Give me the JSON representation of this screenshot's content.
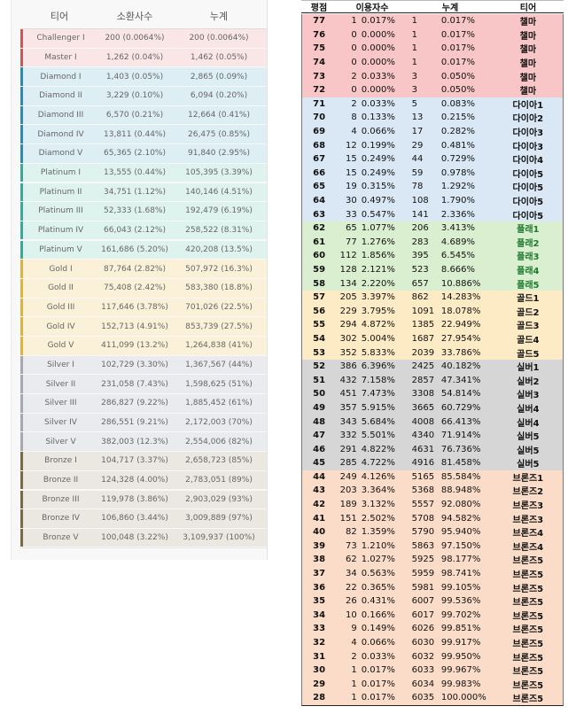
{
  "left": {
    "headers": {
      "tier": "티어",
      "summoners": "소환사수",
      "cumulative": "누계"
    },
    "rows": [
      {
        "tier": "Challenger I",
        "summoners": "200 (0.0064%)",
        "cumulative": "200 (0.0064%)",
        "color": "#fae6e6",
        "stripe": "#c65a5a"
      },
      {
        "tier": "Master I",
        "summoners": "1,262 (0.04%)",
        "cumulative": "1,462 (0.05%)",
        "color": "#fae6e6",
        "stripe": "#c65a5a"
      },
      {
        "tier": "Diamond I",
        "summoners": "1,403 (0.05%)",
        "cumulative": "2,865 (0.09%)",
        "color": "#ddeef5",
        "stripe": "#2f8ab0"
      },
      {
        "tier": "Diamond II",
        "summoners": "3,229 (0.10%)",
        "cumulative": "6,094 (0.20%)",
        "color": "#ddeef5",
        "stripe": "#2f8ab0"
      },
      {
        "tier": "Diamond III",
        "summoners": "6,570 (0.21%)",
        "cumulative": "12,664 (0.41%)",
        "color": "#ddeef5",
        "stripe": "#2f8ab0"
      },
      {
        "tier": "Diamond IV",
        "summoners": "13,811 (0.44%)",
        "cumulative": "26,475 (0.85%)",
        "color": "#ddeef5",
        "stripe": "#2f8ab0"
      },
      {
        "tier": "Diamond V",
        "summoners": "65,365 (2.10%)",
        "cumulative": "91,840 (2.95%)",
        "color": "#ddeef5",
        "stripe": "#2f8ab0"
      },
      {
        "tier": "Platinum I",
        "summoners": "13,555 (0.44%)",
        "cumulative": "105,395 (3.39%)",
        "color": "#dff3ee",
        "stripe": "#3aa99a"
      },
      {
        "tier": "Platinum II",
        "summoners": "34,751 (1.12%)",
        "cumulative": "140,146 (4.51%)",
        "color": "#dff3ee",
        "stripe": "#3aa99a"
      },
      {
        "tier": "Platinum III",
        "summoners": "52,333 (1.68%)",
        "cumulative": "192,479 (6.19%)",
        "color": "#dff3ee",
        "stripe": "#3aa99a"
      },
      {
        "tier": "Platinum IV",
        "summoners": "66,043 (2.12%)",
        "cumulative": "258,522 (8.31%)",
        "color": "#dff3ee",
        "stripe": "#3aa99a"
      },
      {
        "tier": "Platinum V",
        "summoners": "161,686 (5.20%)",
        "cumulative": "420,208 (13.5%)",
        "color": "#dff3ee",
        "stripe": "#3aa99a"
      },
      {
        "tier": "Gold I",
        "summoners": "87,764 (2.82%)",
        "cumulative": "507,972 (16.3%)",
        "color": "#fbf1d9",
        "stripe": "#e0b240"
      },
      {
        "tier": "Gold II",
        "summoners": "75,408 (2.42%)",
        "cumulative": "583,380 (18.8%)",
        "color": "#fbf1d9",
        "stripe": "#e0b240"
      },
      {
        "tier": "Gold III",
        "summoners": "117,646 (3.78%)",
        "cumulative": "701,026 (22.5%)",
        "color": "#fbf1d9",
        "stripe": "#e0b240"
      },
      {
        "tier": "Gold IV",
        "summoners": "152,713 (4.91%)",
        "cumulative": "853,739 (27.5%)",
        "color": "#fbf1d9",
        "stripe": "#e0b240"
      },
      {
        "tier": "Gold V",
        "summoners": "411,099 (13.2%)",
        "cumulative": "1,264,838 (41%)",
        "color": "#fbf1d9",
        "stripe": "#e0b240"
      },
      {
        "tier": "Silver I",
        "summoners": "102,729 (3.30%)",
        "cumulative": "1,367,567 (44%)",
        "color": "#eaebee",
        "stripe": "#a4a8b0"
      },
      {
        "tier": "Silver II",
        "summoners": "231,058 (7.43%)",
        "cumulative": "1,598,625 (51%)",
        "color": "#eaebee",
        "stripe": "#a4a8b0"
      },
      {
        "tier": "Silver III",
        "summoners": "286,827 (9.22%)",
        "cumulative": "1,885,452 (61%)",
        "color": "#eaebee",
        "stripe": "#a4a8b0"
      },
      {
        "tier": "Silver IV",
        "summoners": "286,551 (9.21%)",
        "cumulative": "2,172,003 (70%)",
        "color": "#eaebee",
        "stripe": "#a4a8b0"
      },
      {
        "tier": "Silver V",
        "summoners": "382,003 (12.3%)",
        "cumulative": "2,554,006 (82%)",
        "color": "#eaebee",
        "stripe": "#a4a8b0"
      },
      {
        "tier": "Bronze I",
        "summoners": "104,717 (3.37%)",
        "cumulative": "2,658,723 (85%)",
        "color": "#eae8e1",
        "stripe": "#7a6a44"
      },
      {
        "tier": "Bronze II",
        "summoners": "124,328 (4.00%)",
        "cumulative": "2,783,051 (89%)",
        "color": "#eae8e1",
        "stripe": "#7a6a44"
      },
      {
        "tier": "Bronze III",
        "summoners": "119,978 (3.86%)",
        "cumulative": "2,903,029 (93%)",
        "color": "#eae8e1",
        "stripe": "#7a6a44"
      },
      {
        "tier": "Bronze IV",
        "summoners": "106,860 (3.44%)",
        "cumulative": "3,009,889 (97%)",
        "color": "#eae8e1",
        "stripe": "#7a6a44"
      },
      {
        "tier": "Bronze V",
        "summoners": "100,048 (3.22%)",
        "cumulative": "3,109,937 (100%)",
        "color": "#eae8e1",
        "stripe": "#7a6a44"
      }
    ]
  },
  "right": {
    "headers": {
      "rating": "평점",
      "users": "이용자수",
      "cumulative": "누계",
      "tier": "티어"
    },
    "rows": [
      {
        "rating": "77",
        "users": "1",
        "users_pct": "0.017%",
        "cum": "1",
        "cum_pct": "0.017%",
        "tier": "챌마",
        "color": "#f8c6c6",
        "tier_color": "#111111"
      },
      {
        "rating": "76",
        "users": "0",
        "users_pct": "0.000%",
        "cum": "1",
        "cum_pct": "0.017%",
        "tier": "챌마",
        "color": "#f8c6c6",
        "tier_color": "#111111"
      },
      {
        "rating": "75",
        "users": "0",
        "users_pct": "0.000%",
        "cum": "1",
        "cum_pct": "0.017%",
        "tier": "챌마",
        "color": "#f8c6c6",
        "tier_color": "#111111"
      },
      {
        "rating": "74",
        "users": "0",
        "users_pct": "0.000%",
        "cum": "1",
        "cum_pct": "0.017%",
        "tier": "챌마",
        "color": "#f8c6c6",
        "tier_color": "#111111"
      },
      {
        "rating": "73",
        "users": "2",
        "users_pct": "0.033%",
        "cum": "3",
        "cum_pct": "0.050%",
        "tier": "챌마",
        "color": "#f8c6c6",
        "tier_color": "#111111"
      },
      {
        "rating": "72",
        "users": "0",
        "users_pct": "0.000%",
        "cum": "3",
        "cum_pct": "0.050%",
        "tier": "챌마",
        "color": "#f8c6c6",
        "tier_color": "#111111"
      },
      {
        "rating": "71",
        "users": "2",
        "users_pct": "0.033%",
        "cum": "5",
        "cum_pct": "0.083%",
        "tier": "다이아1",
        "color": "#dae8f5",
        "tier_color": "#111111"
      },
      {
        "rating": "70",
        "users": "8",
        "users_pct": "0.133%",
        "cum": "13",
        "cum_pct": "0.215%",
        "tier": "다이아2",
        "color": "#dae8f5",
        "tier_color": "#111111"
      },
      {
        "rating": "69",
        "users": "4",
        "users_pct": "0.066%",
        "cum": "17",
        "cum_pct": "0.282%",
        "tier": "다이아3",
        "color": "#dae8f5",
        "tier_color": "#111111"
      },
      {
        "rating": "68",
        "users": "12",
        "users_pct": "0.199%",
        "cum": "29",
        "cum_pct": "0.481%",
        "tier": "다이아3",
        "color": "#dae8f5",
        "tier_color": "#111111"
      },
      {
        "rating": "67",
        "users": "15",
        "users_pct": "0.249%",
        "cum": "44",
        "cum_pct": "0.729%",
        "tier": "다이아4",
        "color": "#dae8f5",
        "tier_color": "#111111"
      },
      {
        "rating": "66",
        "users": "15",
        "users_pct": "0.249%",
        "cum": "59",
        "cum_pct": "0.978%",
        "tier": "다이아5",
        "color": "#dae8f5",
        "tier_color": "#111111"
      },
      {
        "rating": "65",
        "users": "19",
        "users_pct": "0.315%",
        "cum": "78",
        "cum_pct": "1.292%",
        "tier": "다이아5",
        "color": "#dae8f5",
        "tier_color": "#111111"
      },
      {
        "rating": "64",
        "users": "30",
        "users_pct": "0.497%",
        "cum": "108",
        "cum_pct": "1.790%",
        "tier": "다이아5",
        "color": "#dae8f5",
        "tier_color": "#111111"
      },
      {
        "rating": "63",
        "users": "33",
        "users_pct": "0.547%",
        "cum": "141",
        "cum_pct": "2.336%",
        "tier": "다이아5",
        "color": "#dae8f5",
        "tier_color": "#111111"
      },
      {
        "rating": "62",
        "users": "65",
        "users_pct": "1.077%",
        "cum": "206",
        "cum_pct": "3.413%",
        "tier": "플래1",
        "color": "#d9efcf",
        "tier_color": "#1f7a2e"
      },
      {
        "rating": "61",
        "users": "77",
        "users_pct": "1.276%",
        "cum": "283",
        "cum_pct": "4.689%",
        "tier": "플래2",
        "color": "#d9efcf",
        "tier_color": "#1f7a2e"
      },
      {
        "rating": "60",
        "users": "112",
        "users_pct": "1.856%",
        "cum": "395",
        "cum_pct": "6.545%",
        "tier": "플래3",
        "color": "#d9efcf",
        "tier_color": "#1f7a2e"
      },
      {
        "rating": "59",
        "users": "128",
        "users_pct": "2.121%",
        "cum": "523",
        "cum_pct": "8.666%",
        "tier": "플래4",
        "color": "#d9efcf",
        "tier_color": "#1f7a2e"
      },
      {
        "rating": "58",
        "users": "134",
        "users_pct": "2.220%",
        "cum": "657",
        "cum_pct": "10.886%",
        "tier": "플래5",
        "color": "#d9efcf",
        "tier_color": "#1f7a2e"
      },
      {
        "rating": "57",
        "users": "205",
        "users_pct": "3.397%",
        "cum": "862",
        "cum_pct": "14.283%",
        "tier": "골드1",
        "color": "#fdebc6",
        "tier_color": "#111111"
      },
      {
        "rating": "56",
        "users": "229",
        "users_pct": "3.795%",
        "cum": "1091",
        "cum_pct": "18.078%",
        "tier": "골드2",
        "color": "#fdebc6",
        "tier_color": "#111111"
      },
      {
        "rating": "55",
        "users": "294",
        "users_pct": "4.872%",
        "cum": "1385",
        "cum_pct": "22.949%",
        "tier": "골드3",
        "color": "#fdebc6",
        "tier_color": "#111111"
      },
      {
        "rating": "54",
        "users": "302",
        "users_pct": "5.004%",
        "cum": "1687",
        "cum_pct": "27.954%",
        "tier": "골드4",
        "color": "#fdebc6",
        "tier_color": "#111111"
      },
      {
        "rating": "53",
        "users": "352",
        "users_pct": "5.833%",
        "cum": "2039",
        "cum_pct": "33.786%",
        "tier": "골드5",
        "color": "#fdebc6",
        "tier_color": "#111111"
      },
      {
        "rating": "52",
        "users": "386",
        "users_pct": "6.396%",
        "cum": "2425",
        "cum_pct": "40.182%",
        "tier": "실버1",
        "color": "#d6d6d6",
        "tier_color": "#111111"
      },
      {
        "rating": "51",
        "users": "432",
        "users_pct": "7.158%",
        "cum": "2857",
        "cum_pct": "47.341%",
        "tier": "실버2",
        "color": "#d6d6d6",
        "tier_color": "#111111"
      },
      {
        "rating": "50",
        "users": "451",
        "users_pct": "7.473%",
        "cum": "3308",
        "cum_pct": "54.814%",
        "tier": "실버3",
        "color": "#d6d6d6",
        "tier_color": "#111111"
      },
      {
        "rating": "49",
        "users": "357",
        "users_pct": "5.915%",
        "cum": "3665",
        "cum_pct": "60.729%",
        "tier": "실버4",
        "color": "#d6d6d6",
        "tier_color": "#111111"
      },
      {
        "rating": "48",
        "users": "343",
        "users_pct": "5.684%",
        "cum": "4008",
        "cum_pct": "66.413%",
        "tier": "실버4",
        "color": "#d6d6d6",
        "tier_color": "#111111"
      },
      {
        "rating": "47",
        "users": "332",
        "users_pct": "5.501%",
        "cum": "4340",
        "cum_pct": "71.914%",
        "tier": "실버5",
        "color": "#d6d6d6",
        "tier_color": "#111111"
      },
      {
        "rating": "46",
        "users": "291",
        "users_pct": "4.822%",
        "cum": "4631",
        "cum_pct": "76.736%",
        "tier": "실버5",
        "color": "#d6d6d6",
        "tier_color": "#111111"
      },
      {
        "rating": "45",
        "users": "285",
        "users_pct": "4.722%",
        "cum": "4916",
        "cum_pct": "81.458%",
        "tier": "실버5",
        "color": "#d6d6d6",
        "tier_color": "#111111"
      },
      {
        "rating": "44",
        "users": "249",
        "users_pct": "4.126%",
        "cum": "5165",
        "cum_pct": "85.584%",
        "tier": "브론즈1",
        "color": "#fbdcc9",
        "tier_color": "#111111"
      },
      {
        "rating": "43",
        "users": "203",
        "users_pct": "3.364%",
        "cum": "5368",
        "cum_pct": "88.948%",
        "tier": "브론즈2",
        "color": "#fbdcc9",
        "tier_color": "#111111"
      },
      {
        "rating": "42",
        "users": "189",
        "users_pct": "3.132%",
        "cum": "5557",
        "cum_pct": "92.080%",
        "tier": "브론즈3",
        "color": "#fbdcc9",
        "tier_color": "#111111"
      },
      {
        "rating": "41",
        "users": "151",
        "users_pct": "2.502%",
        "cum": "5708",
        "cum_pct": "94.582%",
        "tier": "브론즈3",
        "color": "#fbdcc9",
        "tier_color": "#111111"
      },
      {
        "rating": "40",
        "users": "82",
        "users_pct": "1.359%",
        "cum": "5790",
        "cum_pct": "95.940%",
        "tier": "브론즈4",
        "color": "#fbdcc9",
        "tier_color": "#111111"
      },
      {
        "rating": "39",
        "users": "73",
        "users_pct": "1.210%",
        "cum": "5863",
        "cum_pct": "97.150%",
        "tier": "브론즈4",
        "color": "#fbdcc9",
        "tier_color": "#111111"
      },
      {
        "rating": "38",
        "users": "62",
        "users_pct": "1.027%",
        "cum": "5925",
        "cum_pct": "98.177%",
        "tier": "브론즈5",
        "color": "#fbdcc9",
        "tier_color": "#111111"
      },
      {
        "rating": "37",
        "users": "34",
        "users_pct": "0.563%",
        "cum": "5959",
        "cum_pct": "98.741%",
        "tier": "브론즈5",
        "color": "#fbdcc9",
        "tier_color": "#111111"
      },
      {
        "rating": "36",
        "users": "22",
        "users_pct": "0.365%",
        "cum": "5981",
        "cum_pct": "99.105%",
        "tier": "브론즈5",
        "color": "#fbdcc9",
        "tier_color": "#111111"
      },
      {
        "rating": "35",
        "users": "26",
        "users_pct": "0.431%",
        "cum": "6007",
        "cum_pct": "99.536%",
        "tier": "브론즈5",
        "color": "#fbdcc9",
        "tier_color": "#111111"
      },
      {
        "rating": "34",
        "users": "10",
        "users_pct": "0.166%",
        "cum": "6017",
        "cum_pct": "99.702%",
        "tier": "브론즈5",
        "color": "#fbdcc9",
        "tier_color": "#111111"
      },
      {
        "rating": "33",
        "users": "9",
        "users_pct": "0.149%",
        "cum": "6026",
        "cum_pct": "99.851%",
        "tier": "브론즈5",
        "color": "#fbdcc9",
        "tier_color": "#111111"
      },
      {
        "rating": "32",
        "users": "4",
        "users_pct": "0.066%",
        "cum": "6030",
        "cum_pct": "99.917%",
        "tier": "브론즈5",
        "color": "#fbdcc9",
        "tier_color": "#111111"
      },
      {
        "rating": "31",
        "users": "2",
        "users_pct": "0.033%",
        "cum": "6032",
        "cum_pct": "99.950%",
        "tier": "브론즈5",
        "color": "#fbdcc9",
        "tier_color": "#111111"
      },
      {
        "rating": "30",
        "users": "1",
        "users_pct": "0.017%",
        "cum": "6033",
        "cum_pct": "99.967%",
        "tier": "브론즈5",
        "color": "#fbdcc9",
        "tier_color": "#111111"
      },
      {
        "rating": "29",
        "users": "1",
        "users_pct": "0.017%",
        "cum": "6034",
        "cum_pct": "99.983%",
        "tier": "브론즈5",
        "color": "#fbdcc9",
        "tier_color": "#111111"
      },
      {
        "rating": "28",
        "users": "1",
        "users_pct": "0.017%",
        "cum": "6035",
        "cum_pct": "100.000%",
        "tier": "브론즈5",
        "color": "#fbdcc9",
        "tier_color": "#111111"
      }
    ]
  }
}
